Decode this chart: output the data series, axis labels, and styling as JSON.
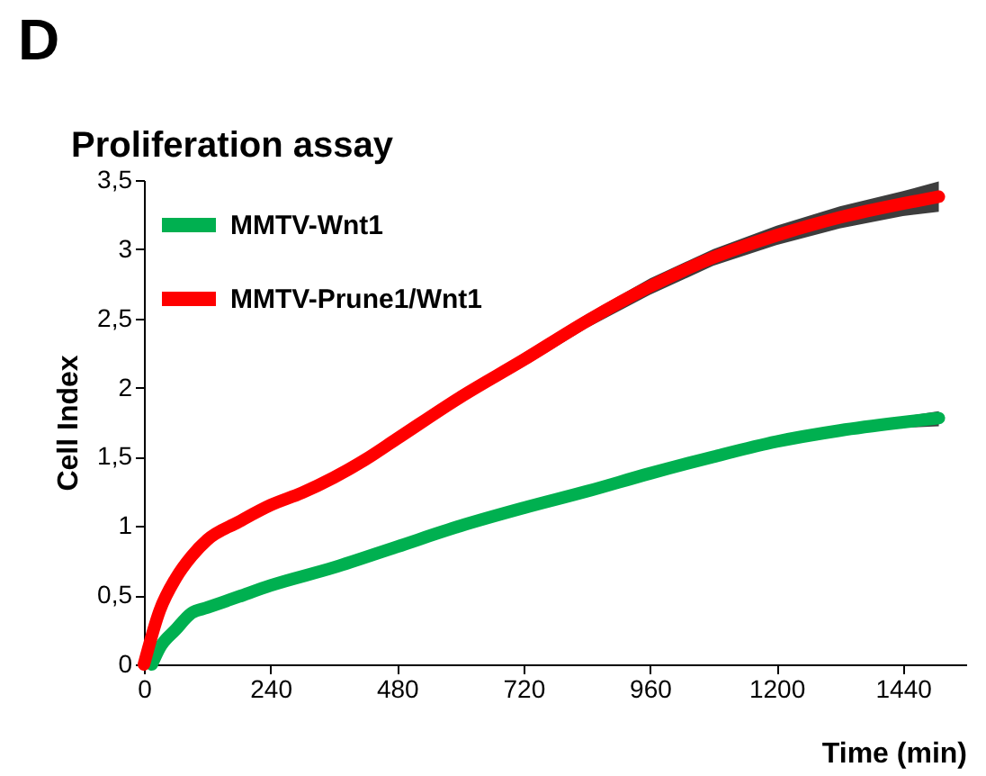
{
  "chart_data": {
    "type": "line",
    "title": "Proliferation assay",
    "xlabel": "Time (min)",
    "ylabel": "Cell Index",
    "annotations": [
      "D"
    ],
    "x": [
      0,
      30,
      60,
      90,
      120,
      180,
      240,
      300,
      360,
      420,
      480,
      600,
      720,
      840,
      960,
      1080,
      1200,
      1320,
      1440,
      1508
    ],
    "series": [
      {
        "name": "MMTV-Wnt1",
        "color": "#00b050",
        "x": [
          15,
          30,
          60,
          90,
          120,
          180,
          240,
          360,
          480,
          600,
          720,
          840,
          960,
          1080,
          1200,
          1320,
          1440,
          1508
        ],
        "values": [
          0,
          0.12,
          0.25,
          0.37,
          0.41,
          0.49,
          0.57,
          0.7,
          0.85,
          1.0,
          1.13,
          1.25,
          1.38,
          1.5,
          1.61,
          1.69,
          1.75,
          1.78
        ],
        "lower": [
          0,
          0.1,
          0.23,
          0.35,
          0.39,
          0.47,
          0.55,
          0.68,
          0.83,
          0.97,
          1.1,
          1.22,
          1.35,
          1.47,
          1.58,
          1.66,
          1.71,
          1.72
        ],
        "upper": [
          0,
          0.14,
          0.27,
          0.39,
          0.43,
          0.51,
          0.59,
          0.72,
          0.87,
          1.03,
          1.16,
          1.28,
          1.41,
          1.53,
          1.64,
          1.72,
          1.79,
          1.83
        ]
      },
      {
        "name": "MMTV-Prune1/Wnt1",
        "color": "#ff0000",
        "values": [
          0,
          0.39,
          0.62,
          0.78,
          0.9,
          1.03,
          1.15,
          1.24,
          1.35,
          1.48,
          1.63,
          1.93,
          2.2,
          2.48,
          2.73,
          2.94,
          3.1,
          3.23,
          3.33,
          3.38
        ],
        "lower": [
          0,
          0.36,
          0.59,
          0.75,
          0.87,
          1.0,
          1.12,
          1.21,
          1.32,
          1.44,
          1.59,
          1.89,
          2.15,
          2.43,
          2.67,
          2.88,
          3.03,
          3.15,
          3.24,
          3.27
        ],
        "upper": [
          0,
          0.42,
          0.65,
          0.81,
          0.93,
          1.06,
          1.18,
          1.27,
          1.38,
          1.52,
          1.67,
          1.97,
          2.25,
          2.53,
          2.79,
          3.0,
          3.17,
          3.31,
          3.42,
          3.49
        ]
      }
    ],
    "xlim": [
      0,
      1560
    ],
    "xticks": [
      0,
      240,
      480,
      720,
      960,
      1200,
      1440
    ],
    "ylim": [
      0,
      3.5
    ],
    "yticks": [
      0,
      {
        "value": 0.5,
        "label": "0,5"
      },
      1,
      {
        "value": 1.5,
        "label": "1,5"
      },
      2,
      {
        "value": 2.5,
        "label": "2,5"
      },
      3,
      {
        "value": 3.5,
        "label": "3,5"
      }
    ],
    "grid": false,
    "legend": "top left",
    "marker": "none",
    "line_style": "solid"
  }
}
